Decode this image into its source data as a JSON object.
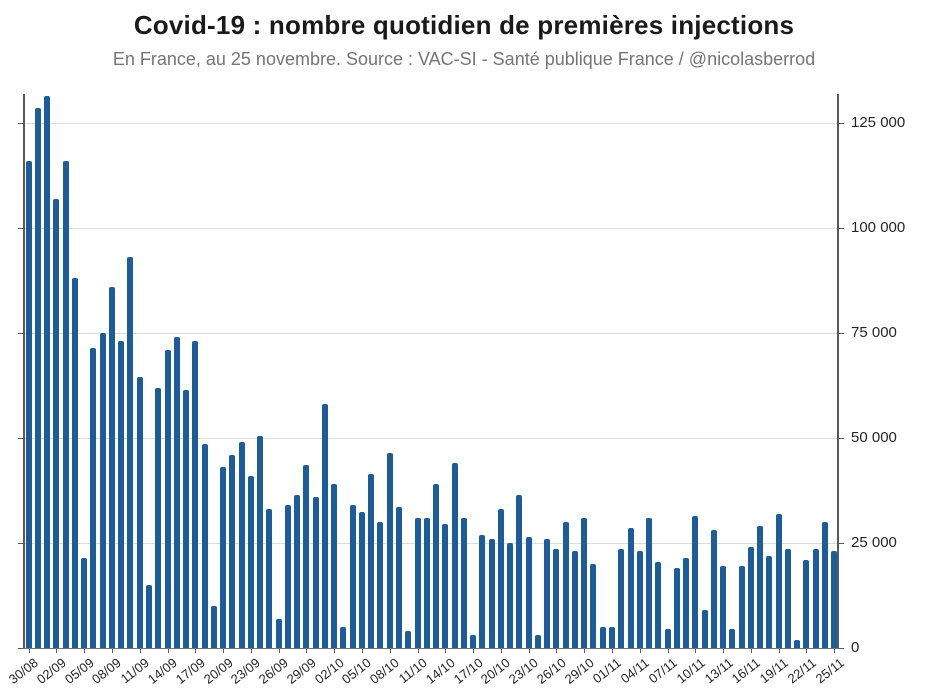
{
  "title": "Covid-19 : nombre quotidien de premières injections",
  "subtitle": "En France, au 25 novembre. Source : VAC-SI - Santé publique France / @nicolasberrod",
  "colors": {
    "bar": "#1d5c9b",
    "grid": "#dcdcdc",
    "axis": "#595959",
    "title_text": "#1a1a1a",
    "subtitle_text": "#757575",
    "tick_label_text": "#262626"
  },
  "chart_data": {
    "type": "bar",
    "title": "Covid-19 : nombre quotidien de premières injections",
    "subtitle": "En France, au 25 novembre. Source : VAC-SI - Santé publique France / @nicolasberrod",
    "xlabel": "",
    "ylabel": "",
    "grid": "horizontal",
    "legend_position": "none",
    "ylim": [
      0,
      137500
    ],
    "yticks": [
      0,
      25000,
      50000,
      75000,
      100000,
      125000
    ],
    "ytick_labels": [
      "0",
      "25 000",
      "50 000",
      "75 000",
      "100 000",
      "125 000"
    ],
    "ytick_side": "right",
    "xtick_label_every": 3,
    "xtick_labels_shown": [
      "30/08",
      "02/09",
      "05/09",
      "08/09",
      "11/09",
      "14/09",
      "17/09",
      "20/09",
      "23/09",
      "26/09",
      "29/09",
      "02/10",
      "05/10",
      "08/10",
      "11/10",
      "14/10",
      "17/10",
      "20/10",
      "23/10",
      "26/10",
      "29/10",
      "01/11",
      "04/11",
      "07/11",
      "10/11",
      "13/11",
      "16/11",
      "19/11",
      "22/11",
      "25/11"
    ],
    "categories": [
      "30/08",
      "31/08",
      "01/09",
      "02/09",
      "03/09",
      "04/09",
      "05/09",
      "06/09",
      "07/09",
      "08/09",
      "09/09",
      "10/09",
      "11/09",
      "12/09",
      "13/09",
      "14/09",
      "15/09",
      "16/09",
      "17/09",
      "18/09",
      "19/09",
      "20/09",
      "21/09",
      "22/09",
      "23/09",
      "24/09",
      "25/09",
      "26/09",
      "27/09",
      "28/09",
      "29/09",
      "30/09",
      "01/10",
      "02/10",
      "03/10",
      "04/10",
      "05/10",
      "06/10",
      "07/10",
      "08/10",
      "09/10",
      "10/10",
      "11/10",
      "12/10",
      "13/10",
      "14/10",
      "15/10",
      "16/10",
      "17/10",
      "18/10",
      "19/10",
      "20/10",
      "21/10",
      "22/10",
      "23/10",
      "24/10",
      "25/10",
      "26/10",
      "27/10",
      "28/10",
      "29/10",
      "30/10",
      "31/10",
      "01/11",
      "02/11",
      "03/11",
      "04/11",
      "05/11",
      "06/11",
      "07/11",
      "08/11",
      "09/11",
      "10/11",
      "11/11",
      "12/11",
      "13/11",
      "14/11",
      "15/11",
      "16/11",
      "17/11",
      "18/11",
      "19/11",
      "20/11",
      "21/11",
      "22/11",
      "23/11",
      "24/11",
      "25/11"
    ],
    "values": [
      116000,
      128500,
      131500,
      107000,
      116000,
      88000,
      21500,
      71500,
      75000,
      86000,
      73000,
      93000,
      64500,
      15000,
      62000,
      71000,
      74000,
      61500,
      73000,
      48500,
      10000,
      43000,
      46000,
      49000,
      41000,
      50500,
      33000,
      7000,
      34000,
      36500,
      43500,
      36000,
      58000,
      39000,
      5000,
      34000,
      32500,
      41500,
      30000,
      46500,
      33500,
      4000,
      31000,
      31000,
      39000,
      29500,
      44000,
      31000,
      3000,
      27000,
      26000,
      33000,
      25000,
      36500,
      26500,
      3000,
      26000,
      23500,
      30000,
      23000,
      31000,
      20000,
      5000,
      5000,
      23500,
      28500,
      23000,
      31000,
      20500,
      4500,
      19000,
      21500,
      31500,
      9000,
      28000,
      19500,
      4500,
      19500,
      24000,
      29000,
      22000,
      32000,
      23500,
      2000,
      21000,
      23500,
      30000,
      23000
    ]
  }
}
